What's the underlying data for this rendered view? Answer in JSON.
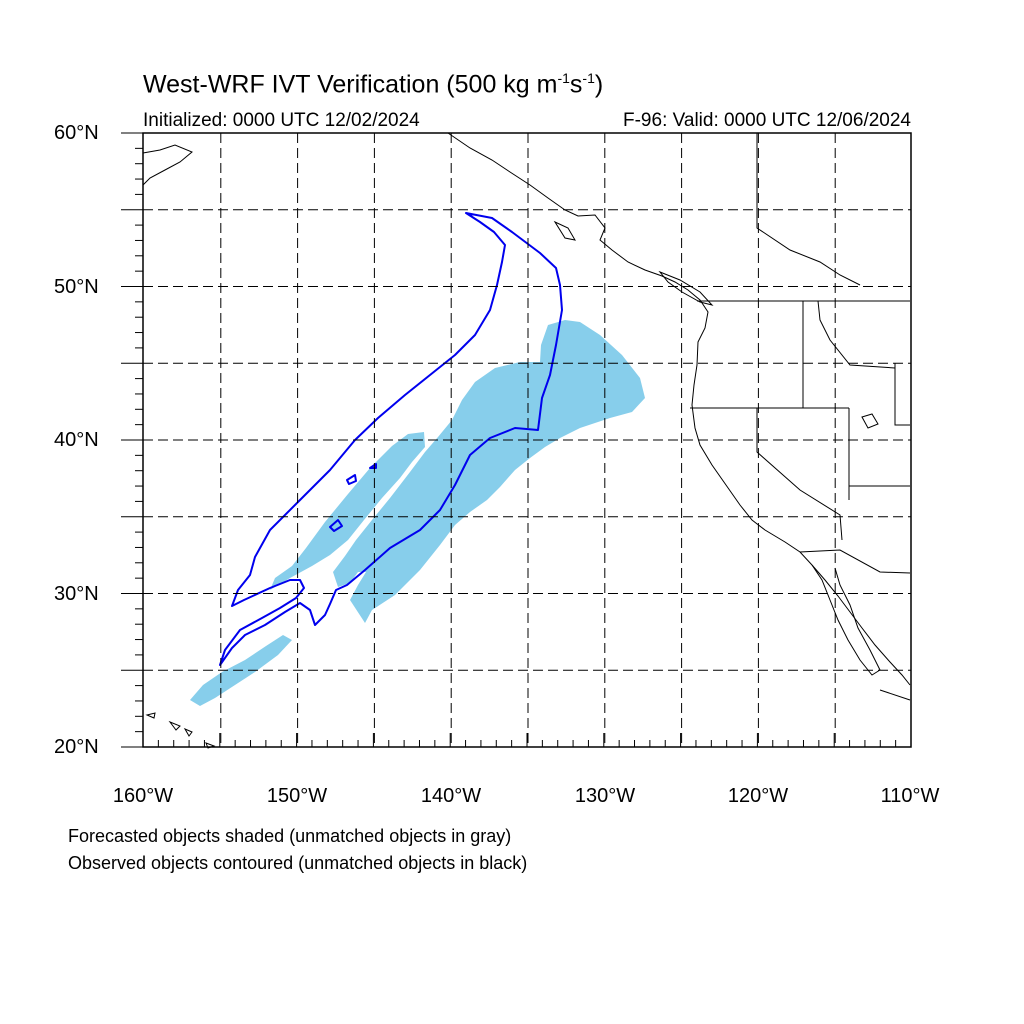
{
  "title": {
    "prefix": "West-WRF IVT Verification (500 kg m",
    "exp1": "-1",
    "mid": "s",
    "exp2": "-1",
    "suffix": ")"
  },
  "initialized": "Initialized: 0000 UTC 12/02/2024",
  "valid": "F-96: Valid: 0000 UTC 12/06/2024",
  "lat_labels": [
    "60°N",
    "50°N",
    "40°N",
    "30°N",
    "20°N"
  ],
  "lon_labels": [
    "160°W",
    "150°W",
    "140°W",
    "130°W",
    "120°W",
    "110°W"
  ],
  "notes": [
    "Forecasted objects shaded (unmatched objects in gray)",
    "Observed objects contoured (unmatched objects in black)"
  ],
  "colors": {
    "forecast_fill": "#87CEEB",
    "observed_contour": "#0000EE",
    "coast": "#000000",
    "grid": "#000000"
  },
  "map": {
    "lon_range": [
      -160,
      -110
    ],
    "lat_range": [
      20,
      60
    ],
    "grid_spacing_deg": 5,
    "grid_style": "dashed"
  }
}
